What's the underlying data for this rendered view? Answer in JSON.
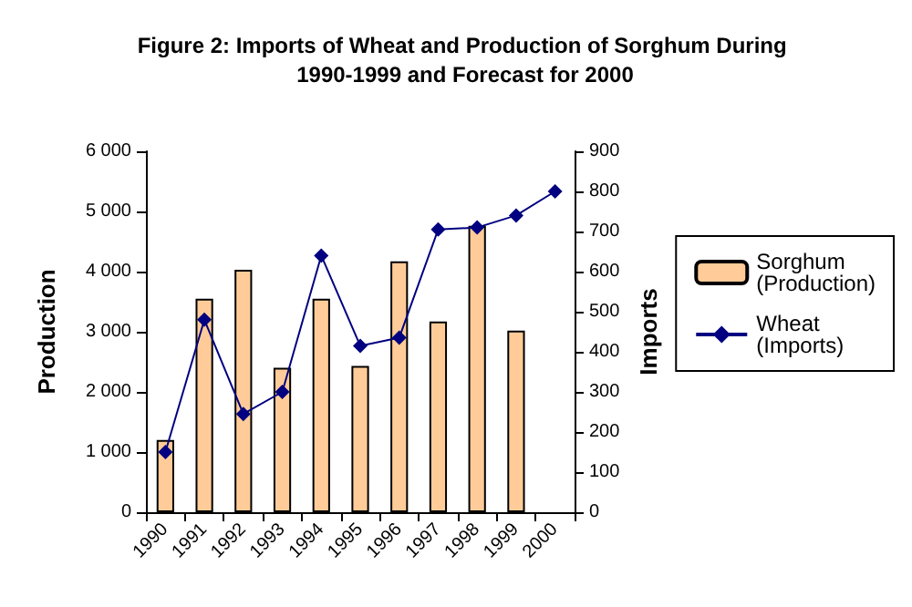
{
  "chart_data": {
    "type": "bar",
    "title": "Figure 2: Imports of Wheat and Production of Sorghum During 1990-1999 and Forecast for 2000",
    "categories": [
      "1990",
      "1991",
      "1992",
      "1993",
      "1994",
      "1995",
      "1996",
      "1997",
      "1998",
      "1999",
      "2000"
    ],
    "series": [
      {
        "name": "Sorghum (Production)",
        "color": "#ffcc99",
        "values": [
          1200,
          3550,
          4030,
          2400,
          3550,
          2430,
          4170,
          3170,
          4760,
          3020,
          null
        ]
      },
      {
        "name": "Wheat (Imports)",
        "type": "line",
        "axis": "y2",
        "color": "#000080",
        "marker": "diamond",
        "values": [
          150,
          480,
          245,
          300,
          640,
          415,
          435,
          705,
          710,
          740,
          800
        ]
      }
    ],
    "ylabel": "Production",
    "y2label": "Imports",
    "ylim": [
      0,
      6000
    ],
    "yticks": [
      {
        "value": 0,
        "label": "0"
      },
      {
        "value": 1000,
        "label": "1 000"
      },
      {
        "value": 2000,
        "label": "2 000"
      },
      {
        "value": 3000,
        "label": "3 000"
      },
      {
        "value": 4000,
        "label": "4 000"
      },
      {
        "value": 5000,
        "label": "5 000"
      },
      {
        "value": 6000,
        "label": "6 000"
      }
    ],
    "y2lim": [
      0,
      900
    ],
    "y2ticks": [
      0,
      100,
      200,
      300,
      400,
      500,
      600,
      700,
      800,
      900
    ],
    "grid": false,
    "legend": "right"
  }
}
